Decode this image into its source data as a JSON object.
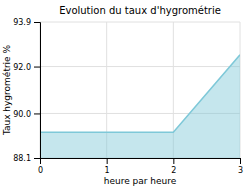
{
  "chart_data": {
    "type": "area",
    "title": "Evolution du taux d'hygrométrie",
    "xlabel": "heure par heure",
    "ylabel": "Taux hygrométrie %",
    "x": [
      0,
      2,
      3
    ],
    "values": [
      89.2,
      89.2,
      92.5
    ],
    "color": "#7EC8D8",
    "xlim": [
      0,
      3
    ],
    "ylim": [
      88.1,
      93.9
    ],
    "xticks": [
      0,
      1,
      2,
      3
    ],
    "yticks": [
      88.1,
      {
        "value": 90,
        "label": "90.0"
      },
      {
        "value": 92,
        "label": "92.0"
      },
      93.9
    ],
    "grid": true
  }
}
